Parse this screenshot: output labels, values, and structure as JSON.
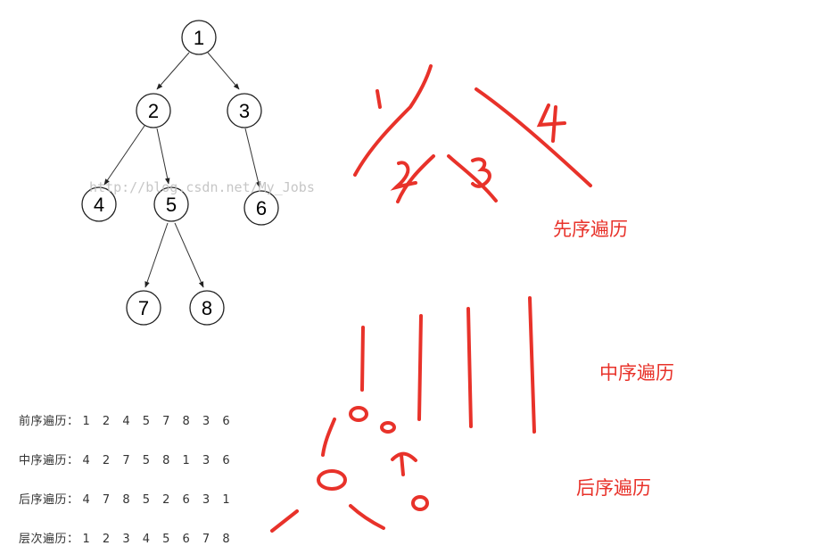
{
  "tree": {
    "nodes": [
      {
        "id": "n1",
        "label": "1"
      },
      {
        "id": "n2",
        "label": "2"
      },
      {
        "id": "n3",
        "label": "3"
      },
      {
        "id": "n4",
        "label": "4"
      },
      {
        "id": "n5",
        "label": "5"
      },
      {
        "id": "n6",
        "label": "6"
      },
      {
        "id": "n7",
        "label": "7"
      },
      {
        "id": "n8",
        "label": "8"
      }
    ],
    "edges": [
      [
        "n1",
        "n2"
      ],
      [
        "n1",
        "n3"
      ],
      [
        "n2",
        "n4"
      ],
      [
        "n2",
        "n5"
      ],
      [
        "n3",
        "n6"
      ],
      [
        "n5",
        "n7"
      ],
      [
        "n5",
        "n8"
      ]
    ]
  },
  "watermark": "http://blog.csdn.net/My_Jobs",
  "traversals": [
    {
      "name": "前序遍历：",
      "values": "1 2 4 5 7 8 3 6"
    },
    {
      "name": "中序遍历：",
      "values": "4 2 7 5 8 1 3 6"
    },
    {
      "name": "后序遍历：",
      "values": "4 7 8 5 2 6 3 1"
    },
    {
      "name": "层次遍历：",
      "values": "1 2 3 4 5 6 7 8"
    }
  ],
  "annotations": {
    "preorder_label": "先序遍历",
    "inorder_label": "中序遍历",
    "postorder_label": "后序遍历",
    "sketch_marks": [
      "1",
      "2",
      "3",
      "4"
    ]
  },
  "colors": {
    "ink": "#222222",
    "annotation": "#e8322a",
    "watermark": "#bdbdbd"
  }
}
